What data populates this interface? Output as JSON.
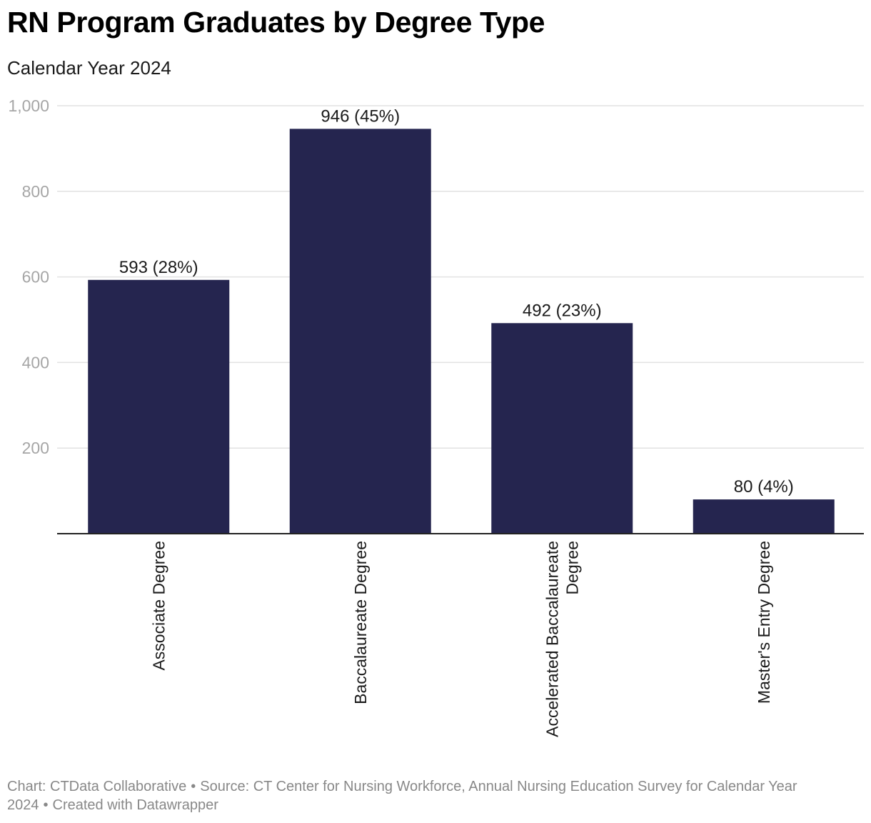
{
  "title": "RN Program Graduates by Degree Type",
  "subtitle": "Calendar Year 2024",
  "chart_data": {
    "type": "bar",
    "categories": [
      "Associate Degree",
      "Baccalaureate Degree",
      "Accelerated Baccalaureate Degree",
      "Master's Entry Degree"
    ],
    "category_lines": [
      [
        "Associate Degree"
      ],
      [
        "Baccalaureate Degree"
      ],
      [
        "Accelerated Baccalaureate",
        "Degree"
      ],
      [
        "Master's Entry Degree"
      ]
    ],
    "values": [
      593,
      946,
      492,
      80
    ],
    "data_labels": [
      "593 (28%)",
      "946 (45%)",
      "492 (23%)",
      "80 (4%)"
    ],
    "ylim": [
      0,
      1000
    ],
    "yticks": [
      200,
      400,
      600,
      800,
      1000
    ],
    "ytick_labels": [
      "200",
      "400",
      "600",
      "800",
      "1,000"
    ],
    "xlabel": "",
    "ylabel": "",
    "grid": true,
    "bar_color": "#25254f",
    "grid_color": "#e2e2e2",
    "tick_label_color": "#a6a6a6"
  },
  "footer": {
    "chart_credit": "Chart: CTData Collaborative",
    "source": "Source: CT Center for Nursing Workforce, Annual Nursing Education Survey for Calendar Year 2024",
    "tool": "Created with Datawrapper",
    "separator": "•"
  }
}
